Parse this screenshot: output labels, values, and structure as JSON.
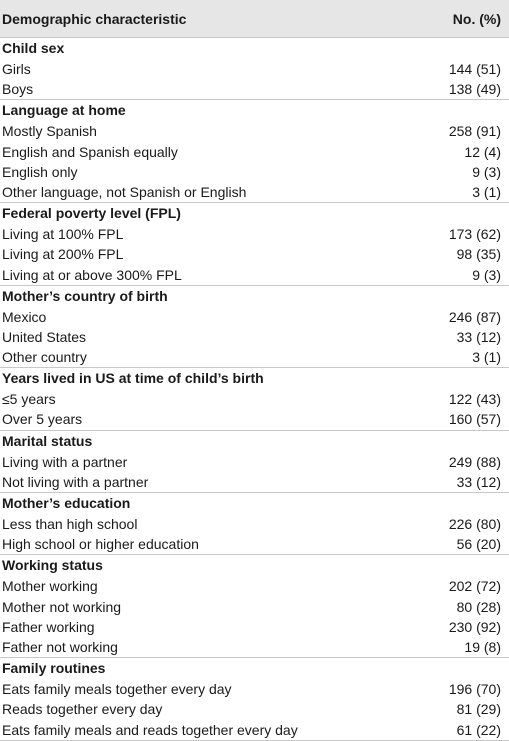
{
  "header": {
    "col1": "Demographic characteristic",
    "col2": "No. (%)"
  },
  "sections": [
    {
      "title": "Child sex",
      "rows": [
        {
          "label": "Girls",
          "value": "144 (51)"
        },
        {
          "label": "Boys",
          "value": "138 (49)"
        }
      ]
    },
    {
      "title": "Language at home",
      "rows": [
        {
          "label": "Mostly Spanish",
          "value": "258 (91)"
        },
        {
          "label": "English and Spanish equally",
          "value": "12 (4)"
        },
        {
          "label": "English only",
          "value": "9 (3)"
        },
        {
          "label": "Other language, not Spanish or English",
          "value": "3 (1)"
        }
      ]
    },
    {
      "title": "Federal poverty level (FPL)",
      "rows": [
        {
          "label": "Living at 100% FPL",
          "value": "173 (62)"
        },
        {
          "label": "Living at 200% FPL",
          "value": "98 (35)"
        },
        {
          "label": "Living at or above 300% FPL",
          "value": "9 (3)"
        }
      ]
    },
    {
      "title": "Mother’s country of birth",
      "rows": [
        {
          "label": "Mexico",
          "value": "246 (87)"
        },
        {
          "label": "United States",
          "value": "33 (12)"
        },
        {
          "label": "Other country",
          "value": "3 (1)"
        }
      ]
    },
    {
      "title": "Years lived in US at time of child’s birth",
      "rows": [
        {
          "label": "≤5 years",
          "value": "122 (43)"
        },
        {
          "label": "Over 5 years",
          "value": "160 (57)"
        }
      ]
    },
    {
      "title": "Marital status",
      "rows": [
        {
          "label": "Living with a partner",
          "value": "249 (88)"
        },
        {
          "label": "Not living with a partner",
          "value": "33 (12)"
        }
      ]
    },
    {
      "title": "Mother’s education",
      "rows": [
        {
          "label": "Less than high school",
          "value": "226 (80)"
        },
        {
          "label": "High school or higher education",
          "value": "56 (20)"
        }
      ]
    },
    {
      "title": "Working status",
      "rows": [
        {
          "label": "Mother working",
          "value": "202 (72)"
        },
        {
          "label": "Mother not working",
          "value": "80 (28)"
        },
        {
          "label": "Father working",
          "value": "230 (92)"
        },
        {
          "label": "Father not working",
          "value": "19 (8)"
        }
      ]
    },
    {
      "title": "Family routines",
      "rows": [
        {
          "label": "Eats family meals together every day",
          "value": "196 (70)"
        },
        {
          "label": "Reads together every day",
          "value": "81 (29)"
        },
        {
          "label": "Eats family meals and reads together every day",
          "value": "61 (22)"
        }
      ]
    }
  ]
}
